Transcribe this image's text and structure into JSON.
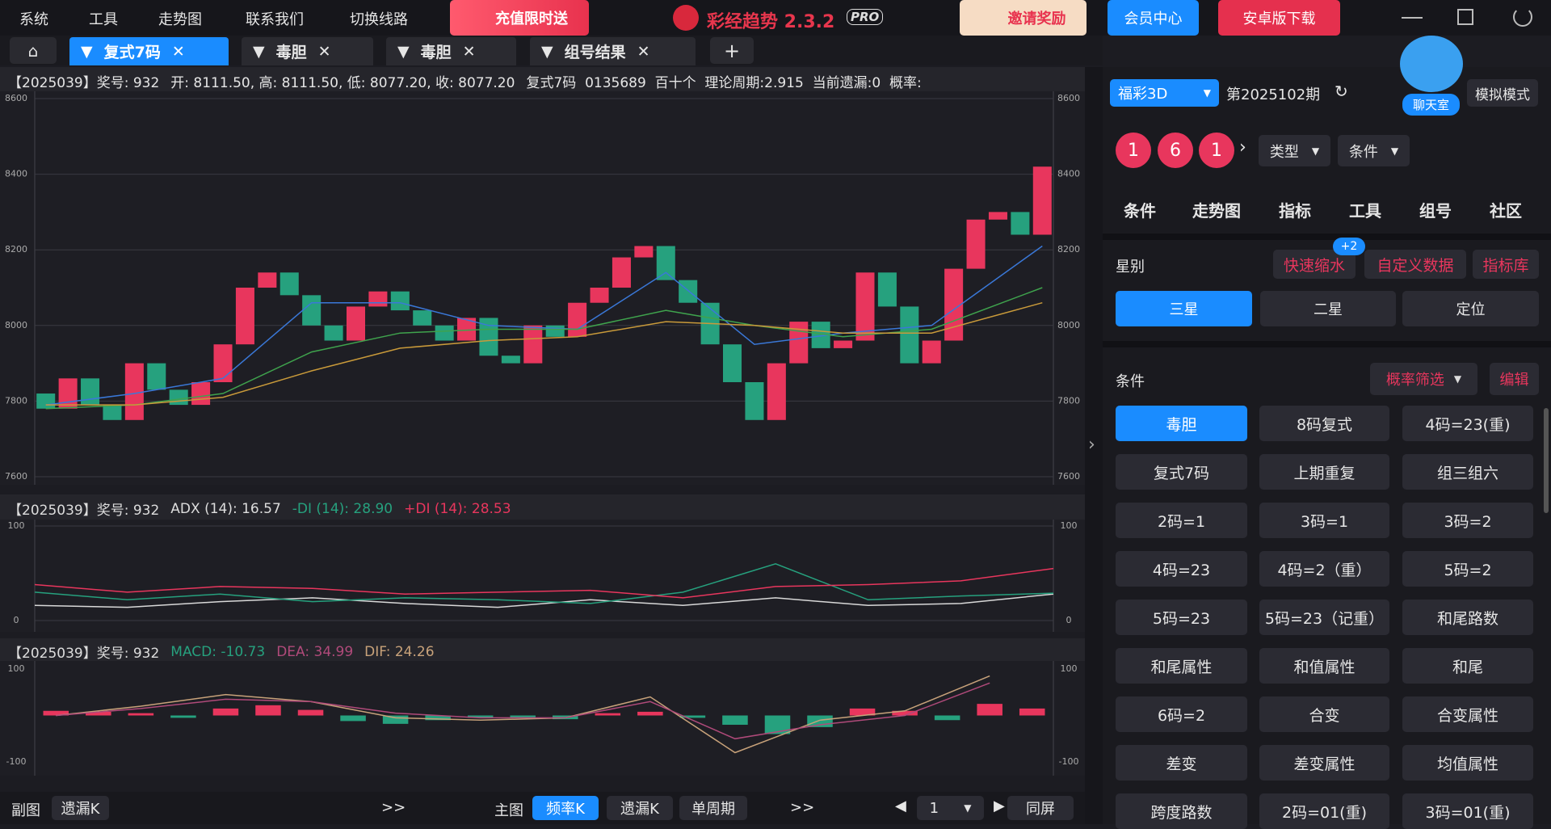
{
  "menu": [
    "系统",
    "工具",
    "走势图",
    "联系我们",
    "切换线路"
  ],
  "promo": "充值限时送",
  "app_title": "彩经趋势 2.3.2",
  "app_badge": "PRO",
  "invite": "邀请奖励",
  "member": "会员中心",
  "android": "安卓版下载",
  "tabs": [
    "复式7码",
    "毒胆",
    "毒胆",
    "组号结果"
  ],
  "info_bar": {
    "period": "【2025039】奖号: 932",
    "ohlc": "开: 8111.50, 高: 8111.50, 低: 8077.20, 收: 8077.20",
    "extra": "复式7码  0135689  百十个  理论周期:2.915  当前遗漏:0  概率:"
  },
  "chart_data": [
    {
      "type": "candlestick",
      "open": [
        7820,
        7780,
        7860,
        7790,
        7750,
        7900,
        7830,
        7790,
        7850,
        7950,
        8100,
        8140,
        8080,
        8000,
        7960,
        8050,
        8090,
        8040,
        8000,
        7960,
        8020,
        7920,
        7900,
        8000,
        7970,
        8060,
        8100,
        8180,
        8210,
        8120,
        8060,
        7950,
        7850,
        7750,
        7900,
        8010,
        7940,
        7960,
        8140,
        8050,
        7900,
        7960,
        8150,
        8280,
        8300,
        8240
      ],
      "close": [
        7780,
        7860,
        7790,
        7750,
        7900,
        7830,
        7790,
        7850,
        7950,
        8100,
        8140,
        8080,
        8000,
        7960,
        8050,
        8090,
        8040,
        8000,
        7960,
        8020,
        7920,
        7900,
        8000,
        7970,
        8060,
        8100,
        8180,
        8210,
        8120,
        8060,
        7950,
        7850,
        7750,
        7900,
        8010,
        7940,
        7960,
        8140,
        8050,
        7900,
        7960,
        8150,
        8280,
        8300,
        8240,
        8420
      ],
      "up_color": "#e8365d",
      "down_color": "#26a17e",
      "series": [
        {
          "color": "#3a78d8",
          "x": [
            0,
            4,
            8,
            12,
            16,
            20,
            24,
            28,
            32,
            36,
            40,
            45
          ],
          "values": [
            7790,
            7820,
            7860,
            8060,
            8060,
            8000,
            7990,
            8140,
            7950,
            7980,
            8000,
            8210
          ]
        },
        {
          "color": "#3fa34d",
          "x": [
            0,
            4,
            8,
            12,
            16,
            20,
            24,
            28,
            32,
            36,
            40,
            45
          ],
          "values": [
            7780,
            7790,
            7820,
            7930,
            7980,
            7990,
            7990,
            8040,
            8000,
            7970,
            7990,
            8100
          ]
        },
        {
          "color": "#c99a3a",
          "x": [
            0,
            4,
            8,
            12,
            16,
            20,
            24,
            28,
            32,
            36,
            40,
            45
          ],
          "values": [
            7790,
            7790,
            7810,
            7880,
            7940,
            7960,
            7970,
            8010,
            8000,
            7980,
            7980,
            8060
          ]
        }
      ],
      "ylim": [
        7600,
        8600
      ],
      "yticks": [
        7600,
        7800,
        8000,
        8200,
        8400,
        8600
      ],
      "grid": true
    },
    {
      "type": "line",
      "header": [
        {
          "text": "【2025039】奖号: 932",
          "color": "#dddddd"
        },
        {
          "text": "ADX (14): 16.57",
          "color": "#dddddd"
        },
        {
          "text": "-DI (14): 28.90",
          "color": "#26a17e"
        },
        {
          "text": "+DI (14): 28.53",
          "color": "#e8365d"
        }
      ],
      "series": [
        {
          "color": "#d8d8d8",
          "x": [
            0,
            1,
            2,
            3,
            4,
            5,
            6,
            7,
            8,
            9,
            10,
            11
          ],
          "values": [
            16,
            14,
            20,
            24,
            18,
            14,
            22,
            16,
            24,
            16,
            18,
            28
          ]
        },
        {
          "color": "#26a17e",
          "x": [
            0,
            1,
            2,
            3,
            4,
            5,
            6,
            7,
            8,
            9,
            10,
            11
          ],
          "values": [
            30,
            22,
            28,
            20,
            24,
            22,
            18,
            30,
            60,
            22,
            26,
            29
          ]
        },
        {
          "color": "#e8365d",
          "x": [
            0,
            1,
            2,
            3,
            4,
            5,
            6,
            7,
            8,
            9,
            10,
            11
          ],
          "values": [
            38,
            30,
            36,
            34,
            28,
            30,
            32,
            24,
            36,
            38,
            42,
            55
          ]
        }
      ],
      "xlim": [
        0,
        11
      ],
      "ylim": [
        0,
        100
      ],
      "yticks": [
        0,
        100
      ],
      "grid": true
    },
    {
      "type": "bar",
      "header": [
        {
          "text": "【2025039】奖号: 932",
          "color": "#dddddd"
        },
        {
          "text": "MACD: -10.73",
          "color": "#26a17e"
        },
        {
          "text": "DEA: 34.99",
          "color": "#b04a7a"
        },
        {
          "text": "DIF: 24.26",
          "color": "#c8a27a"
        }
      ],
      "values": [
        10,
        8,
        5,
        -5,
        15,
        22,
        12,
        -12,
        -18,
        -10,
        -5,
        -5,
        -8,
        5,
        8,
        -5,
        -20,
        -40,
        -25,
        15,
        10,
        -10,
        25,
        15
      ],
      "up_color": "#e8365d",
      "down_color": "#26a17e",
      "series": [
        {
          "color": "#c8a27a",
          "x": [
            0,
            2,
            4,
            6,
            8,
            10,
            12,
            14,
            16,
            18,
            20,
            22
          ],
          "values": [
            0,
            20,
            45,
            30,
            -5,
            -10,
            -5,
            40,
            -80,
            -10,
            10,
            85
          ]
        },
        {
          "color": "#b04a7a",
          "x": [
            0,
            2,
            4,
            6,
            8,
            10,
            12,
            14,
            16,
            18,
            20,
            22
          ],
          "values": [
            0,
            15,
            35,
            30,
            5,
            -5,
            -5,
            30,
            -50,
            -20,
            0,
            70
          ]
        }
      ],
      "ylim": [
        -100,
        100
      ],
      "yticks": [
        -100,
        100
      ],
      "grid": false
    }
  ],
  "side": {
    "lottery": "福彩3D",
    "issue": "第2025102期",
    "chat": "聊天室",
    "sim": "模拟模式",
    "balls": [
      1,
      6,
      1
    ],
    "type_select": "类型",
    "cond_select": "条件",
    "nav": [
      "条件",
      "走势图",
      "指标",
      "工具",
      "组号",
      "社区"
    ],
    "star": {
      "label": "星别",
      "badge": "+2",
      "links": [
        "快速缩水",
        "自定义数据",
        "指标库"
      ],
      "options": [
        "三星",
        "二星",
        "定位"
      ]
    },
    "conditions": {
      "label": "条件",
      "filter": "概率筛选",
      "edit": "编辑",
      "items": [
        "毒胆",
        "8码复式",
        "4码=23(重)",
        "复式7码",
        "上期重复",
        "组三组六",
        "2码=1",
        "3码=1",
        "3码=2",
        "4码=23",
        "4码=2（重）",
        "5码=2",
        "5码=23",
        "5码=23（记重）",
        "和尾路数",
        "和尾属性",
        "和值属性",
        "和尾",
        "6码=2",
        "合变",
        "合变属性",
        "差变",
        "差变属性",
        "均值属性",
        "跨度路数",
        "2码=01(重)",
        "3码=01(重)"
      ]
    }
  },
  "bottom": {
    "sub": "副图",
    "sub_btn": "遗漏K",
    "more": ">>",
    "main": "主图",
    "main_btns": [
      "频率K",
      "遗漏K",
      "单周期"
    ],
    "page": 1,
    "same": "同屏"
  }
}
